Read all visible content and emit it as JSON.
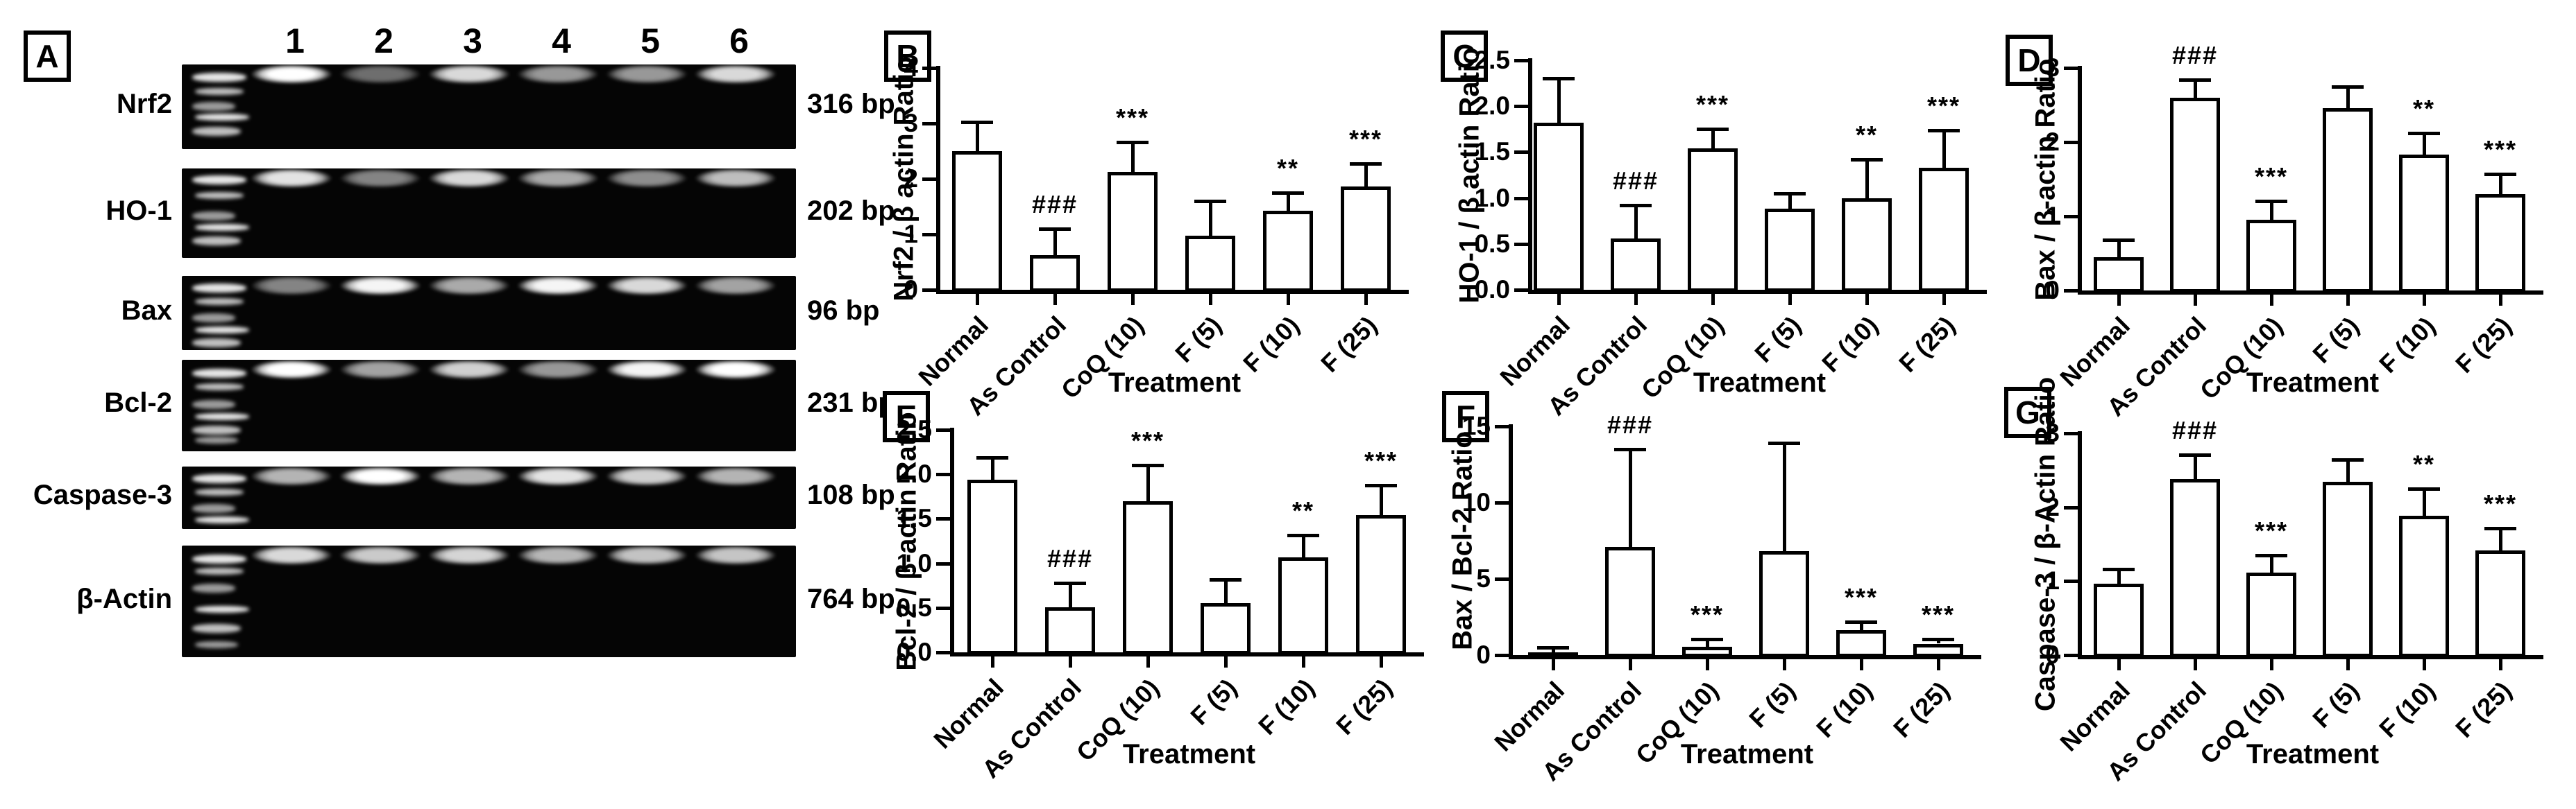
{
  "panel_a": {
    "label": "A",
    "lane_numbers": [
      "1",
      "2",
      "3",
      "4",
      "5",
      "6"
    ],
    "rows": [
      {
        "gene": "Nrf2",
        "bp": "316 bp",
        "bands": [
          1.0,
          0.22,
          0.8,
          0.45,
          0.45,
          0.8
        ]
      },
      {
        "gene": "HO-1",
        "bp": "202 bp",
        "bands": [
          0.85,
          0.35,
          0.8,
          0.55,
          0.4,
          0.65
        ]
      },
      {
        "gene": "Bax",
        "bp": "96 bp",
        "bands": [
          0.35,
          0.95,
          0.55,
          0.95,
          0.8,
          0.5
        ]
      },
      {
        "gene": "Bcl-2",
        "bp": "231 bp",
        "bands": [
          1.0,
          0.5,
          0.75,
          0.45,
          0.95,
          1.0
        ]
      },
      {
        "gene": "Caspase-3",
        "bp": "108 bp",
        "bands": [
          0.6,
          1.0,
          0.6,
          0.85,
          0.75,
          0.6
        ]
      },
      {
        "gene": "β-Actin",
        "bp": "764 bp",
        "bands": [
          0.8,
          0.72,
          0.78,
          0.62,
          0.68,
          0.7
        ]
      }
    ]
  },
  "chart_data": [
    {
      "panel": "B",
      "type": "bar",
      "title": "",
      "ylabel": "Nrf2 / β actin Ratio",
      "xlabel": "Treatment",
      "ylim": [
        0,
        4
      ],
      "yticks": [
        "0",
        "1",
        "2",
        "3",
        "4"
      ],
      "categories": [
        "Normal",
        "As Control",
        "CoQ (10)",
        "F (5)",
        "F (10)",
        "F (25)"
      ],
      "values": [
        2.5,
        0.62,
        2.13,
        0.98,
        1.42,
        1.86
      ],
      "errors_upper": [
        0.52,
        0.48,
        0.53,
        0.62,
        0.33,
        0.42
      ],
      "significance": [
        "",
        "###",
        "***",
        "",
        "**",
        "***"
      ]
    },
    {
      "panel": "C",
      "type": "bar",
      "title": "",
      "ylabel": "HO-1 / β actin Ratio",
      "xlabel": "Treatment",
      "ylim": [
        0,
        2.5
      ],
      "yticks": [
        "0.0",
        "0.5",
        "1.0",
        "1.5",
        "2.0",
        "2.5"
      ],
      "categories": [
        "Normal",
        "As Control",
        "CoQ (10)",
        "F (5)",
        "F (10)",
        "F (25)"
      ],
      "values": [
        1.82,
        0.56,
        1.54,
        0.88,
        1.0,
        1.33
      ],
      "errors_upper": [
        0.48,
        0.36,
        0.21,
        0.17,
        0.42,
        0.41
      ],
      "significance": [
        "",
        "###",
        "***",
        "",
        "**",
        "***"
      ]
    },
    {
      "panel": "D",
      "type": "bar",
      "title": "",
      "ylabel": "Bax / β-actin Ratio",
      "xlabel": "Treatment",
      "ylim": [
        0,
        3
      ],
      "yticks": [
        "0",
        "1",
        "2",
        "3"
      ],
      "categories": [
        "Normal",
        "As Control",
        "CoQ (10)",
        "F (5)",
        "F (10)",
        "F (25)"
      ],
      "values": [
        0.45,
        2.6,
        0.95,
        2.46,
        1.83,
        1.3
      ],
      "errors_upper": [
        0.23,
        0.24,
        0.26,
        0.29,
        0.29,
        0.27
      ],
      "significance": [
        "",
        "###",
        "***",
        "",
        "**",
        "***"
      ]
    },
    {
      "panel": "E",
      "type": "bar",
      "title": "",
      "ylabel": "Bcl-2 / β-actin Ratio",
      "xlabel": "Treatment",
      "ylim": [
        0,
        2.5
      ],
      "yticks": [
        "0.0",
        "0.5",
        "1.0",
        "1.5",
        "2.0",
        "2.5"
      ],
      "categories": [
        "Normal",
        "As Control",
        "CoQ (10)",
        "F (5)",
        "F (10)",
        "F (25)"
      ],
      "values": [
        1.94,
        0.51,
        1.7,
        0.55,
        1.07,
        1.54
      ],
      "errors_upper": [
        0.25,
        0.27,
        0.4,
        0.27,
        0.25,
        0.34
      ],
      "significance": [
        "",
        "###",
        "***",
        "",
        "**",
        "***"
      ]
    },
    {
      "panel": "F",
      "type": "bar",
      "title": "",
      "ylabel": "Bax / Bcl-2 Ratio",
      "xlabel": "Treatment",
      "ylim": [
        0,
        15
      ],
      "yticks": [
        "0",
        "5",
        "10",
        "15"
      ],
      "categories": [
        "Normal",
        "As Control",
        "CoQ (10)",
        "F (5)",
        "F (10)",
        "F (25)"
      ],
      "values": [
        0.2,
        7.1,
        0.55,
        6.8,
        1.65,
        0.75
      ],
      "errors_upper": [
        0.3,
        6.4,
        0.5,
        7.1,
        0.55,
        0.3
      ],
      "significance": [
        "",
        "###",
        "***",
        "",
        "***",
        "***"
      ]
    },
    {
      "panel": "G",
      "type": "bar",
      "title": "",
      "ylabel": "Caspase-3 / β-Actin Ratio",
      "xlabel": "Treatment",
      "ylim": [
        0,
        3
      ],
      "yticks": [
        "0",
        "1",
        "2",
        "3"
      ],
      "categories": [
        "Normal",
        "As Control",
        "CoQ (10)",
        "F (5)",
        "F (10)",
        "F (25)"
      ],
      "values": [
        0.97,
        2.38,
        1.12,
        2.34,
        1.88,
        1.42
      ],
      "errors_upper": [
        0.19,
        0.33,
        0.23,
        0.3,
        0.37,
        0.3
      ],
      "significance": [
        "",
        "###",
        "***",
        "",
        "**",
        "***"
      ]
    }
  ]
}
